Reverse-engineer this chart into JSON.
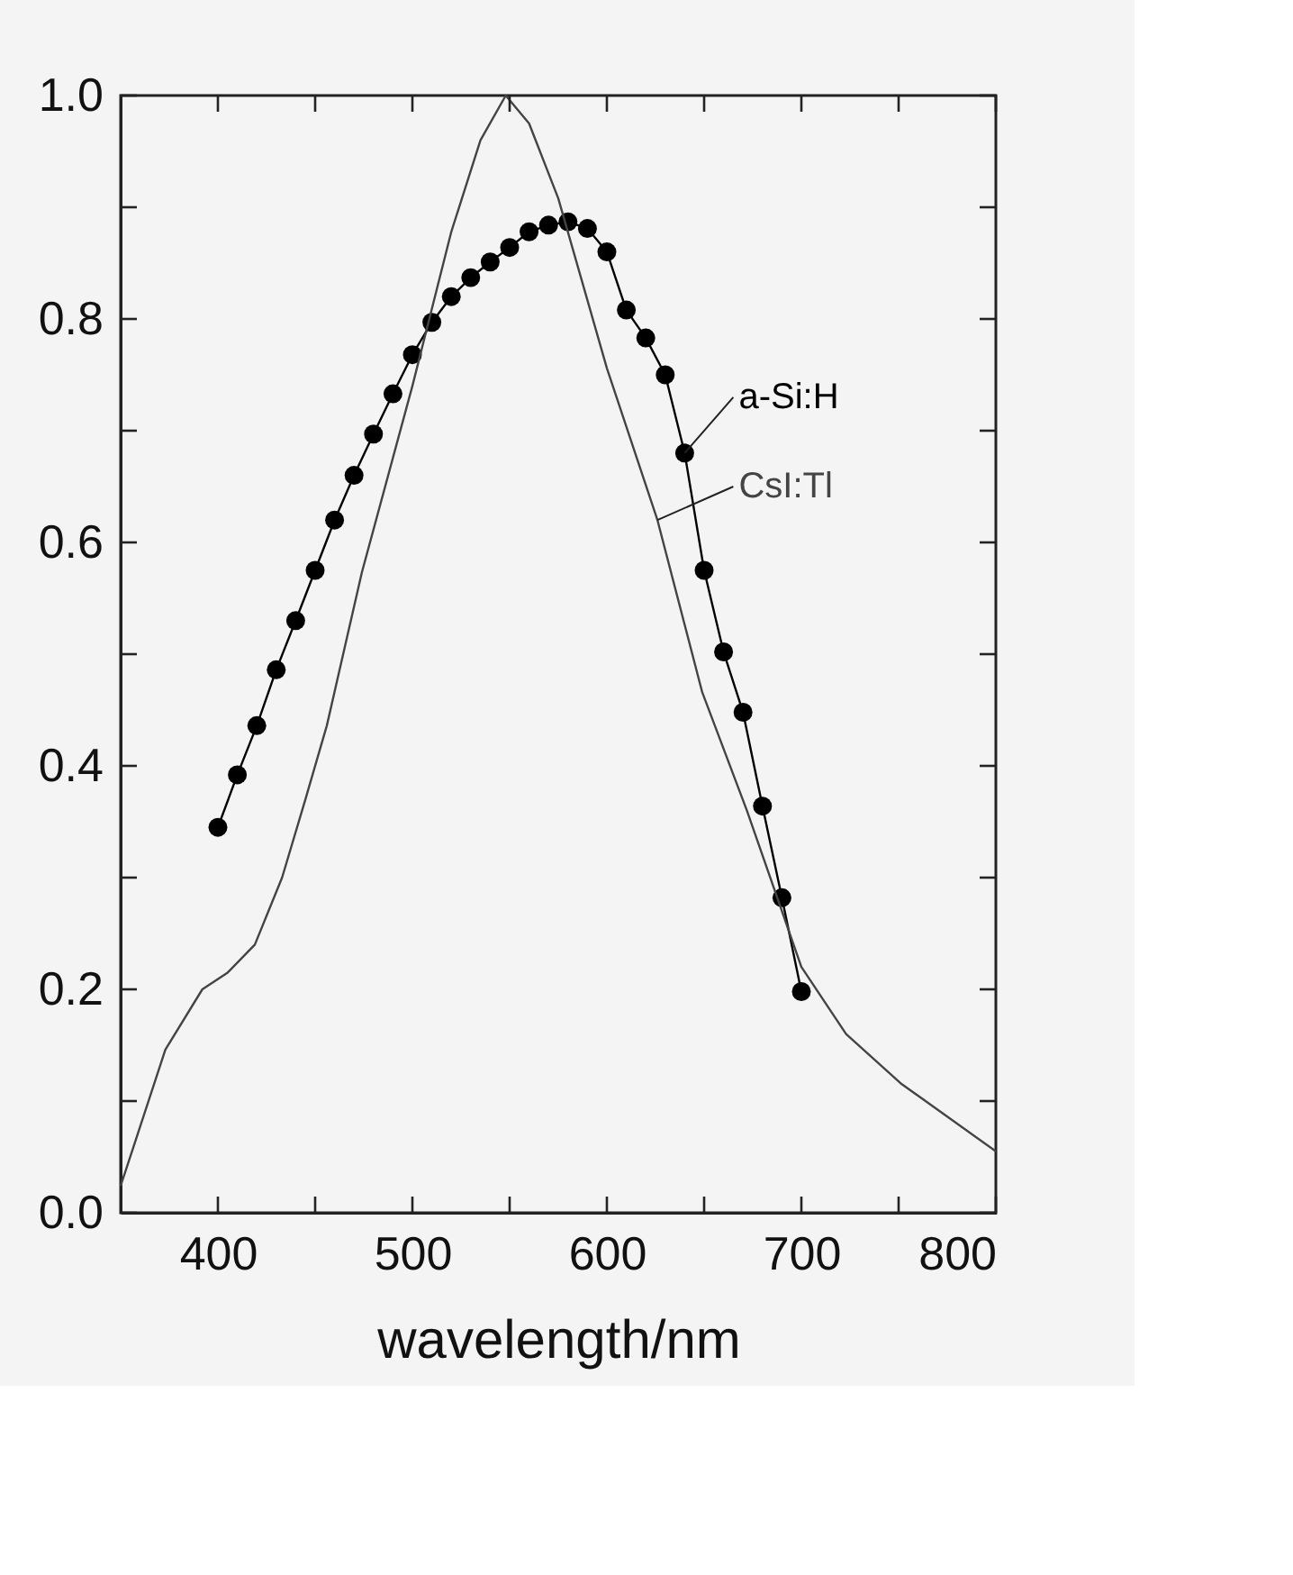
{
  "chart_data": {
    "type": "line",
    "xlabel": "wavelength/nm",
    "xlim": [
      350,
      800
    ],
    "ylim": [
      0,
      1
    ],
    "xticks": [
      400,
      {
        "value": 450,
        "label": null
      },
      500,
      {
        "value": 550,
        "label": null
      },
      600,
      {
        "value": 650,
        "label": null
      },
      700,
      {
        "value": 750,
        "label": null
      },
      800
    ],
    "yticks": [
      {
        "value": 0.0,
        "label": "0.0"
      },
      {
        "value": 0.1,
        "label": null
      },
      0.2,
      {
        "value": 0.3,
        "label": null
      },
      0.4,
      {
        "value": 0.5,
        "label": null
      },
      0.6,
      {
        "value": 0.7,
        "label": null
      },
      0.8,
      {
        "value": 0.9,
        "label": null
      },
      {
        "value": 1.0,
        "label": "1.0"
      }
    ],
    "grid": false,
    "series": [
      {
        "name": "a-Si:H",
        "color": "#000000",
        "marker": "circle",
        "x": [
          400,
          410,
          420,
          430,
          440,
          450,
          460,
          470,
          480,
          490,
          500,
          510,
          520,
          530,
          540,
          550,
          560,
          570,
          580,
          590,
          600,
          610,
          620,
          630,
          640,
          650,
          660,
          670,
          680,
          690,
          700
        ],
        "values": [
          0.345,
          0.392,
          0.436,
          0.486,
          0.53,
          0.575,
          0.62,
          0.66,
          0.697,
          0.733,
          0.768,
          0.797,
          0.82,
          0.837,
          0.851,
          0.864,
          0.878,
          0.884,
          0.887,
          0.881,
          0.86,
          0.808,
          0.783,
          0.75,
          0.68,
          0.575,
          0.502,
          0.448,
          0.364,
          0.282,
          0.198
        ]
      },
      {
        "name": "CsI:Tl",
        "color": "#444444",
        "marker": "none",
        "x": [
          350,
          373,
          392,
          405,
          419,
          433,
          445,
          456,
          474,
          500,
          520,
          535,
          548,
          560,
          575,
          600,
          626,
          649,
          672,
          700,
          723,
          751,
          800
        ],
        "values": [
          0.024,
          0.146,
          0.2,
          0.215,
          0.24,
          0.3,
          0.37,
          0.436,
          0.573,
          0.74,
          0.878,
          0.96,
          1.0,
          0.975,
          0.908,
          0.756,
          0.62,
          0.466,
          0.36,
          0.22,
          0.16,
          0.116,
          0.055
        ]
      }
    ]
  }
}
